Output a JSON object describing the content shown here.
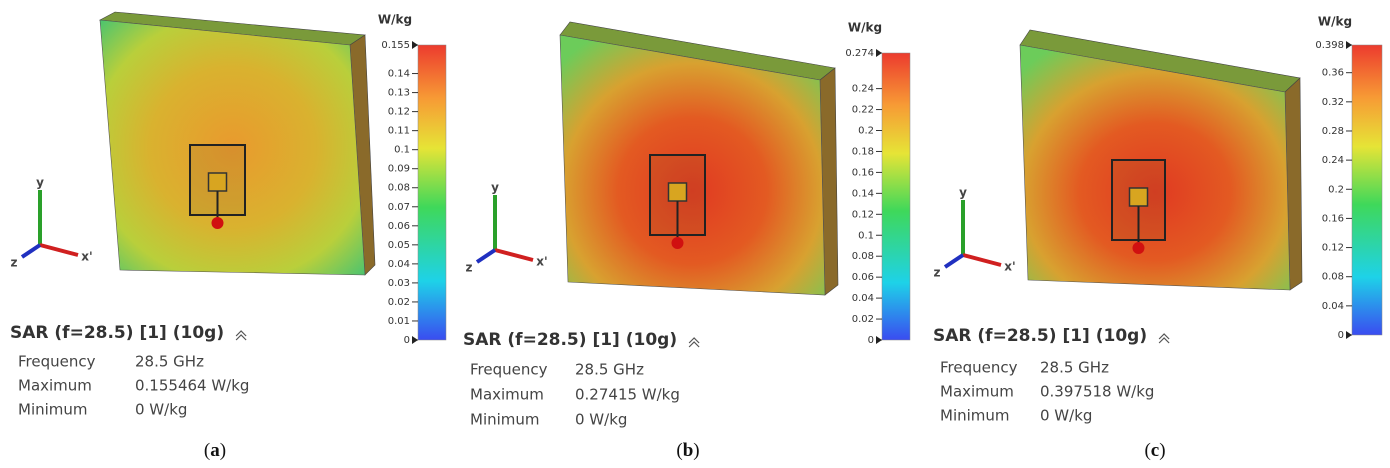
{
  "panels": [
    {
      "unit": "W/kg",
      "colorbar_ticks": [
        "0",
        "0.01",
        "0.02",
        "0.03",
        "0.04",
        "0.05",
        "0.06",
        "0.07",
        "0.08",
        "0.09",
        "0.1",
        "0.11",
        "0.12",
        "0.13",
        "0.14",
        "0.155"
      ],
      "axis_labels": [
        "y",
        "x'",
        "z"
      ],
      "title": "SAR (f=28.5) [1] (10g)",
      "info": [
        [
          "Frequency",
          "28.5 GHz"
        ],
        [
          "Maximum",
          "0.155464 W/kg"
        ],
        [
          "Minimum",
          "0 W/kg"
        ]
      ],
      "caption_letter": "a"
    },
    {
      "unit": "W/kg",
      "colorbar_ticks": [
        "0",
        "0.02",
        "0.04",
        "0.06",
        "0.08",
        "0.1",
        "0.12",
        "0.14",
        "0.16",
        "0.18",
        "0.2",
        "0.22",
        "0.24",
        "0.274"
      ],
      "axis_labels": [
        "y",
        "x'",
        "z"
      ],
      "title": "SAR (f=28.5) [1] (10g)",
      "info": [
        [
          "Frequency",
          "28.5 GHz"
        ],
        [
          "Maximum",
          "0.27415 W/kg"
        ],
        [
          "Minimum",
          "0 W/kg"
        ]
      ],
      "caption_letter": "b"
    },
    {
      "unit": "W/kg",
      "colorbar_ticks": [
        "0",
        "0.04",
        "0.08",
        "0.12",
        "0.16",
        "0.2",
        "0.24",
        "0.28",
        "0.32",
        "0.36",
        "0.398"
      ],
      "axis_labels": [
        "y",
        "x'",
        "z"
      ],
      "title": "SAR (f=28.5) [1] (10g)",
      "info": [
        [
          "Frequency",
          "28.5 GHz"
        ],
        [
          "Maximum",
          "0.397518 W/kg"
        ],
        [
          "Minimum",
          "0 W/kg"
        ]
      ],
      "caption_letter": "c"
    }
  ]
}
